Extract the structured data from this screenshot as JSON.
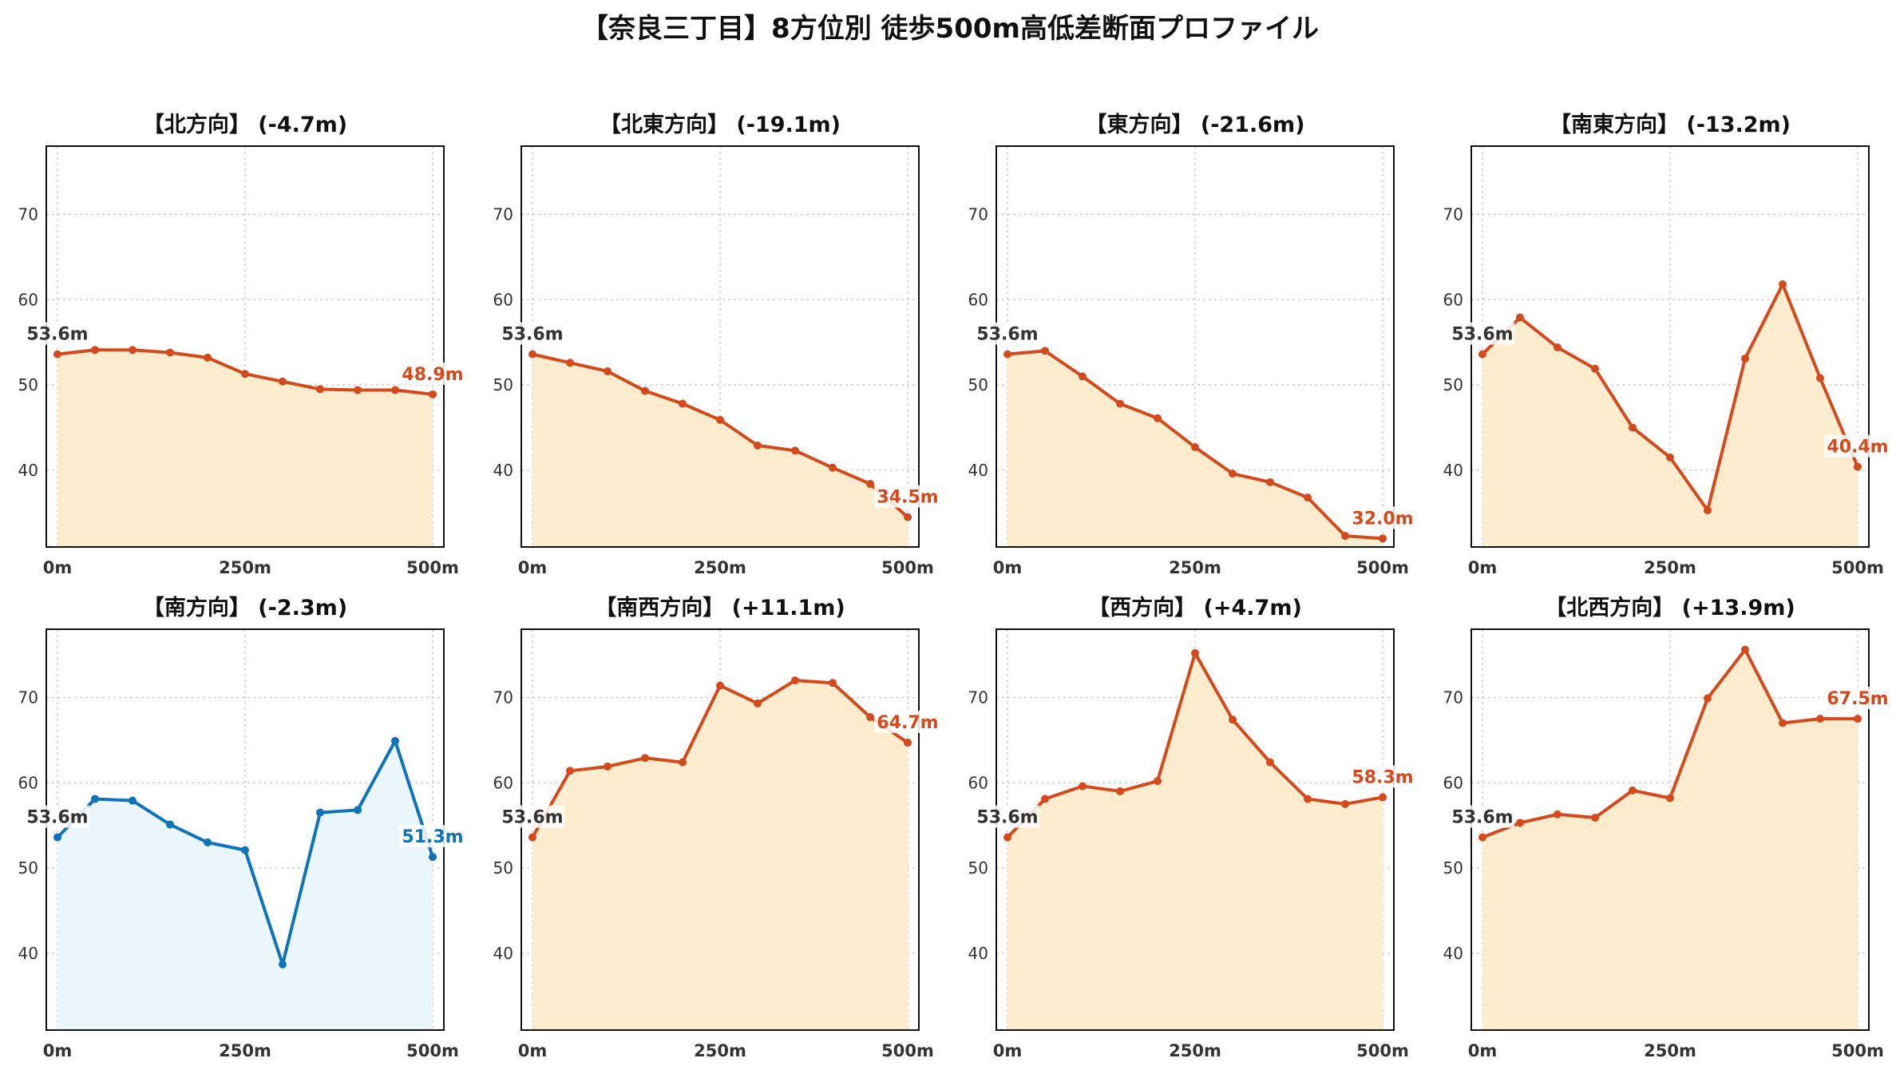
{
  "figure_title": "【奈良三丁目】8方位別 徒歩500m高低差断面プロファイル",
  "chart_data": [
    {
      "type": "area",
      "title": "【北方向】 (-4.7m)",
      "x": [
        0,
        50,
        100,
        150,
        200,
        250,
        300,
        350,
        400,
        450,
        500
      ],
      "values": [
        53.6,
        54.1,
        54.1,
        53.8,
        53.2,
        51.3,
        50.4,
        49.5,
        49.4,
        49.4,
        48.9
      ],
      "start_label": "53.6m",
      "end_label": "48.9m",
      "color": "#d44a1c",
      "fill": "#feeccf",
      "xticks": [
        "0m",
        "250m",
        "500m"
      ],
      "yticks": [
        40,
        50,
        60,
        70
      ],
      "ylim": [
        31,
        78
      ],
      "grid": true
    },
    {
      "type": "area",
      "title": "【北東方向】 (-19.1m)",
      "x": [
        0,
        50,
        100,
        150,
        200,
        250,
        300,
        350,
        400,
        450,
        500
      ],
      "values": [
        53.6,
        52.6,
        51.6,
        49.3,
        47.8,
        45.9,
        42.9,
        42.3,
        40.3,
        38.4,
        34.5
      ],
      "start_label": "53.6m",
      "end_label": "34.5m",
      "color": "#d44a1c",
      "fill": "#feeccf",
      "xticks": [
        "0m",
        "250m",
        "500m"
      ],
      "yticks": [
        40,
        50,
        60,
        70
      ],
      "ylim": [
        31,
        78
      ],
      "grid": true
    },
    {
      "type": "area",
      "title": "【東方向】 (-21.6m)",
      "x": [
        0,
        50,
        100,
        150,
        200,
        250,
        300,
        350,
        400,
        450,
        500
      ],
      "values": [
        53.6,
        54.0,
        51.0,
        47.8,
        46.1,
        42.7,
        39.6,
        38.6,
        36.8,
        32.3,
        32.0
      ],
      "start_label": "53.6m",
      "end_label": "32.0m",
      "color": "#d44a1c",
      "fill": "#feeccf",
      "xticks": [
        "0m",
        "250m",
        "500m"
      ],
      "yticks": [
        40,
        50,
        60,
        70
      ],
      "ylim": [
        31,
        78
      ],
      "grid": true
    },
    {
      "type": "area",
      "title": "【南東方向】 (-13.2m)",
      "x": [
        0,
        50,
        100,
        150,
        200,
        250,
        300,
        350,
        400,
        450,
        500
      ],
      "values": [
        53.6,
        57.9,
        54.4,
        51.9,
        45.0,
        41.5,
        35.3,
        53.1,
        61.8,
        50.8,
        40.4
      ],
      "start_label": "53.6m",
      "end_label": "40.4m",
      "color": "#d44a1c",
      "fill": "#feeccf",
      "xticks": [
        "0m",
        "250m",
        "500m"
      ],
      "yticks": [
        40,
        50,
        60,
        70
      ],
      "ylim": [
        31,
        78
      ],
      "grid": true
    },
    {
      "type": "area",
      "title": "【南方向】 (-2.3m)",
      "x": [
        0,
        50,
        100,
        150,
        200,
        250,
        300,
        350,
        400,
        450,
        500
      ],
      "values": [
        53.6,
        58.1,
        57.9,
        55.1,
        53.0,
        52.1,
        38.7,
        56.5,
        56.8,
        64.9,
        51.3
      ],
      "start_label": "53.6m",
      "end_label": "51.3m",
      "color": "#0f73b8",
      "fill": "#eaf5fc",
      "xticks": [
        "0m",
        "250m",
        "500m"
      ],
      "yticks": [
        40,
        50,
        60,
        70
      ],
      "ylim": [
        31,
        78
      ],
      "grid": true
    },
    {
      "type": "area",
      "title": "【南西方向】 (+11.1m)",
      "x": [
        0,
        50,
        100,
        150,
        200,
        250,
        300,
        350,
        400,
        450,
        500
      ],
      "values": [
        53.6,
        61.4,
        61.9,
        62.9,
        62.4,
        71.4,
        69.3,
        72.0,
        71.7,
        67.7,
        64.7
      ],
      "start_label": "53.6m",
      "end_label": "64.7m",
      "color": "#d44a1c",
      "fill": "#feeccf",
      "xticks": [
        "0m",
        "250m",
        "500m"
      ],
      "yticks": [
        40,
        50,
        60,
        70
      ],
      "ylim": [
        31,
        78
      ],
      "grid": true
    },
    {
      "type": "area",
      "title": "【西方向】 (+4.7m)",
      "x": [
        0,
        50,
        100,
        150,
        200,
        250,
        300,
        350,
        400,
        450,
        500
      ],
      "values": [
        53.6,
        58.1,
        59.6,
        59.0,
        60.2,
        75.2,
        67.4,
        62.4,
        58.1,
        57.5,
        58.3
      ],
      "start_label": "53.6m",
      "end_label": "58.3m",
      "color": "#d44a1c",
      "fill": "#feeccf",
      "xticks": [
        "0m",
        "250m",
        "500m"
      ],
      "yticks": [
        40,
        50,
        60,
        70
      ],
      "ylim": [
        31,
        78
      ],
      "grid": true
    },
    {
      "type": "area",
      "title": "【北西方向】 (+13.9m)",
      "x": [
        0,
        50,
        100,
        150,
        200,
        250,
        300,
        350,
        400,
        450,
        500
      ],
      "values": [
        53.6,
        55.3,
        56.3,
        55.9,
        59.1,
        58.2,
        69.9,
        75.6,
        67.0,
        67.5,
        67.5
      ],
      "start_label": "53.6m",
      "end_label": "67.5m",
      "color": "#d44a1c",
      "fill": "#feeccf",
      "xticks": [
        "0m",
        "250m",
        "500m"
      ],
      "yticks": [
        40,
        50,
        60,
        70
      ],
      "ylim": [
        31,
        78
      ],
      "grid": true
    }
  ]
}
